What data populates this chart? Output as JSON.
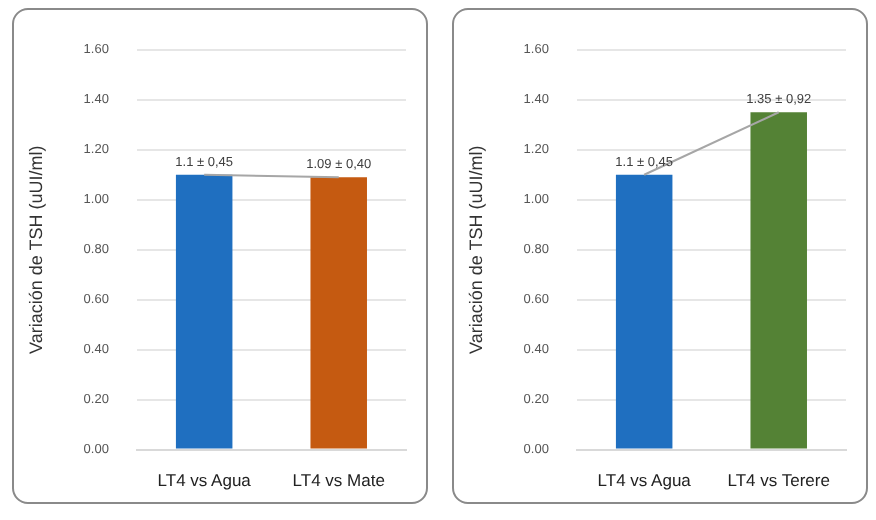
{
  "chart_data": [
    {
      "type": "bar",
      "ylabel": "Variación de TSH (uUI/ml)",
      "categories": [
        "LT4 vs Agua",
        "LT4 vs Mate"
      ],
      "series": [
        {
          "colors": [
            "#1f6fc0",
            "#c55a11"
          ],
          "values": [
            1.1,
            1.09
          ],
          "value_labels": [
            "1.1 ± 0,45",
            "1.09 ± 0,40"
          ]
        },
        {
          "type": "line",
          "color": "#a6a6a6",
          "values": [
            1.1,
            1.09
          ]
        }
      ],
      "ylim": [
        0,
        1.6
      ],
      "yticks": [
        {
          "value": 0,
          "label": "0.00"
        },
        {
          "value": 0.2,
          "label": "0.20"
        },
        {
          "value": 0.4,
          "label": "0.40"
        },
        {
          "value": 0.6,
          "label": "0.60"
        },
        {
          "value": 0.8,
          "label": "0.80"
        },
        {
          "value": 1,
          "label": "1.00"
        },
        {
          "value": 1.2,
          "label": "1.20"
        },
        {
          "value": 1.4,
          "label": "1.40"
        },
        {
          "value": 1.6,
          "label": "1.60"
        }
      ],
      "grid": "y",
      "marker": "none",
      "legend": false
    },
    {
      "type": "bar",
      "ylabel": "Variación de TSH (uUI/ml)",
      "categories": [
        "LT4 vs Agua",
        "LT4 vs Terere"
      ],
      "series": [
        {
          "colors": [
            "#1f6fc0",
            "#548235"
          ],
          "values": [
            1.1,
            1.35
          ],
          "value_labels": [
            "1.1 ± 0,45",
            "1.35 ± 0,92"
          ]
        },
        {
          "type": "line",
          "color": "#a6a6a6",
          "values": [
            1.1,
            1.35
          ]
        }
      ],
      "ylim": [
        0,
        1.6
      ],
      "yticks": [
        {
          "value": 0,
          "label": "0.00"
        },
        {
          "value": 0.2,
          "label": "0.20"
        },
        {
          "value": 0.4,
          "label": "0.40"
        },
        {
          "value": 0.6,
          "label": "0.60"
        },
        {
          "value": 0.8,
          "label": "0.80"
        },
        {
          "value": 1,
          "label": "1.00"
        },
        {
          "value": 1.2,
          "label": "1.20"
        },
        {
          "value": 1.4,
          "label": "1.40"
        },
        {
          "value": 1.6,
          "label": "1.60"
        }
      ],
      "grid": "y",
      "marker": "none",
      "legend": false
    }
  ]
}
